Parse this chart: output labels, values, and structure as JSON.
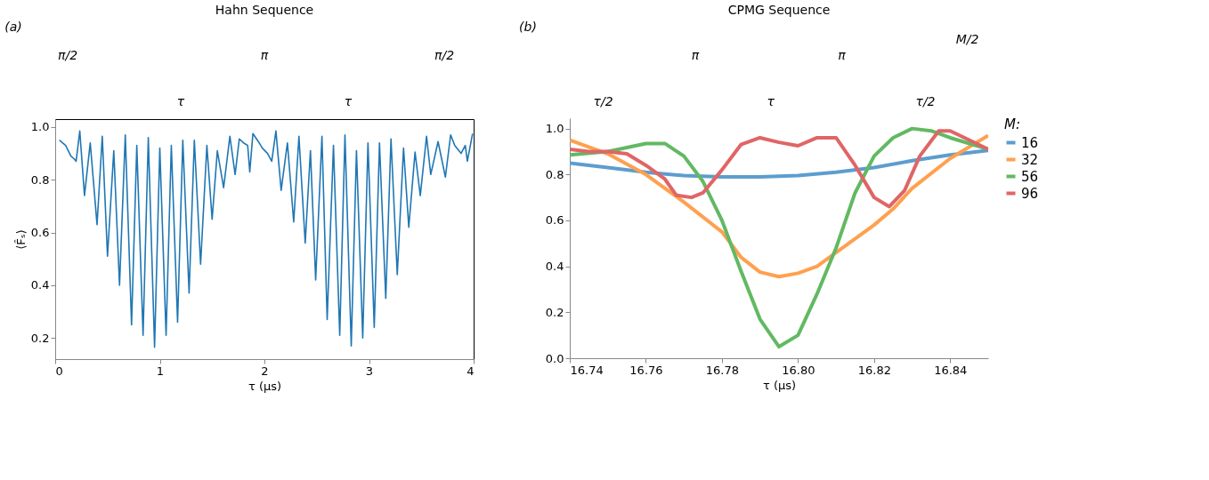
{
  "chart_data": [
    {
      "type": "line",
      "title": "Hahn Sequence",
      "annotations": [
        "(a)",
        "π/2",
        "π",
        "π/2",
        "τ",
        "τ"
      ],
      "xlabel": "τ (μs)",
      "ylabel": "⟨F̂ₛ⟩",
      "xlim": [
        0,
        4
      ],
      "ylim": [
        0.12,
        1.03
      ],
      "xticks": [
        0,
        1,
        2,
        3,
        4
      ],
      "yticks": [
        {
          "value": 0.2,
          "label": "0.2"
        },
        {
          "value": 0.4,
          "label": "0.4"
        },
        {
          "value": 0.6,
          "label": "0.6"
        },
        {
          "value": 0.8,
          "label": "0.8"
        },
        {
          "value": 1.0,
          "label": "1.0"
        }
      ],
      "grid": false,
      "legend": false,
      "line_style": "solid",
      "series": [
        {
          "color": "#1f77b4",
          "x": [
            0.04,
            0.1,
            0.15,
            0.18,
            0.2,
            0.235,
            0.28,
            0.335,
            0.4,
            0.45,
            0.5,
            0.56,
            0.615,
            0.67,
            0.73,
            0.78,
            0.84,
            0.89,
            0.95,
            1.0,
            1.06,
            1.11,
            1.17,
            1.22,
            1.28,
            1.33,
            1.39,
            1.45,
            1.5,
            1.55,
            1.61,
            1.67,
            1.72,
            1.76,
            1.8,
            1.84,
            1.86,
            1.89,
            1.95,
            1.98,
            2.03,
            2.07,
            2.11,
            2.16,
            2.22,
            2.28,
            2.33,
            2.39,
            2.44,
            2.49,
            2.55,
            2.6,
            2.66,
            2.72,
            2.77,
            2.83,
            2.88,
            2.94,
            2.99,
            3.05,
            3.1,
            3.16,
            3.21,
            3.27,
            3.33,
            3.38,
            3.44,
            3.49,
            3.55,
            3.59,
            3.66,
            3.73,
            3.78,
            3.82,
            3.88,
            3.92,
            3.94,
            3.99
          ],
          "values": [
            0.95,
            0.93,
            0.89,
            0.88,
            0.87,
            0.985,
            0.74,
            0.94,
            0.63,
            0.965,
            0.51,
            0.91,
            0.4,
            0.97,
            0.25,
            0.93,
            0.21,
            0.96,
            0.165,
            0.92,
            0.21,
            0.93,
            0.26,
            0.95,
            0.37,
            0.95,
            0.48,
            0.93,
            0.65,
            0.91,
            0.77,
            0.965,
            0.82,
            0.955,
            0.94,
            0.93,
            0.83,
            0.975,
            0.94,
            0.92,
            0.9,
            0.87,
            0.985,
            0.76,
            0.94,
            0.64,
            0.965,
            0.56,
            0.91,
            0.42,
            0.965,
            0.27,
            0.93,
            0.21,
            0.97,
            0.17,
            0.91,
            0.2,
            0.94,
            0.24,
            0.94,
            0.35,
            0.955,
            0.44,
            0.92,
            0.62,
            0.905,
            0.74,
            0.965,
            0.82,
            0.945,
            0.81,
            0.97,
            0.93,
            0.9,
            0.93,
            0.87,
            0.975
          ]
        }
      ]
    },
    {
      "type": "line",
      "title": "CPMG Sequence",
      "annotations": [
        "(b)",
        "π",
        "π",
        "τ/2",
        "τ",
        "τ/2",
        "M/2"
      ],
      "xlabel": "τ (μs)",
      "legend_title": "M:",
      "xlim": [
        16.74,
        16.85
      ],
      "ylim": [
        0,
        1.045
      ],
      "xticks": [
        16.74,
        16.76,
        16.78,
        {
          "value": 16.8,
          "label": "16.80"
        },
        16.82,
        16.84
      ],
      "yticks": [
        {
          "value": 0,
          "label": "0.0"
        },
        {
          "value": 0.2,
          "label": "0.2"
        },
        {
          "value": 0.4,
          "label": "0.4"
        },
        {
          "value": 0.6,
          "label": "0.6"
        },
        {
          "value": 0.8,
          "label": "0.8"
        },
        {
          "value": 1.0,
          "label": "1.0"
        }
      ],
      "grid": false,
      "legend": "right",
      "line_style": "solid",
      "series": [
        {
          "name": "16",
          "color": "#5d9dcf",
          "x": [
            16.74,
            16.75,
            16.76,
            16.77,
            16.78,
            16.79,
            16.8,
            16.81,
            16.82,
            16.83,
            16.84,
            16.85
          ],
          "values": [
            0.85,
            0.83,
            0.81,
            0.795,
            0.79,
            0.79,
            0.795,
            0.81,
            0.83,
            0.86,
            0.885,
            0.905
          ]
        },
        {
          "name": "32",
          "color": "#ffa04f",
          "x": [
            16.74,
            16.75,
            16.76,
            16.77,
            16.78,
            16.785,
            16.79,
            16.795,
            16.8,
            16.805,
            16.81,
            16.82,
            16.825,
            16.83,
            16.84,
            16.85
          ],
          "values": [
            0.95,
            0.89,
            0.8,
            0.68,
            0.55,
            0.44,
            0.375,
            0.355,
            0.37,
            0.4,
            0.46,
            0.58,
            0.65,
            0.74,
            0.87,
            0.97
          ]
        },
        {
          "name": "56",
          "color": "#62b962",
          "x": [
            16.74,
            16.75,
            16.76,
            16.765,
            16.77,
            16.775,
            16.78,
            16.785,
            16.79,
            16.795,
            16.8,
            16.805,
            16.81,
            16.815,
            16.82,
            16.825,
            16.83,
            16.835,
            16.84,
            16.85
          ],
          "values": [
            0.885,
            0.9,
            0.935,
            0.935,
            0.88,
            0.77,
            0.6,
            0.38,
            0.17,
            0.05,
            0.1,
            0.28,
            0.48,
            0.72,
            0.88,
            0.96,
            1.0,
            0.99,
            0.96,
            0.91
          ]
        },
        {
          "name": "96",
          "color": "#e06566",
          "x": [
            16.74,
            16.745,
            16.75,
            16.755,
            16.76,
            16.765,
            16.768,
            16.772,
            16.775,
            16.78,
            16.785,
            16.79,
            16.795,
            16.8,
            16.805,
            16.81,
            16.815,
            16.82,
            16.824,
            16.828,
            16.832,
            16.837,
            16.84,
            16.845,
            16.85
          ],
          "values": [
            0.91,
            0.9,
            0.9,
            0.89,
            0.84,
            0.78,
            0.71,
            0.7,
            0.72,
            0.82,
            0.93,
            0.96,
            0.94,
            0.925,
            0.96,
            0.96,
            0.84,
            0.7,
            0.66,
            0.73,
            0.88,
            0.99,
            0.99,
            0.95,
            0.91
          ]
        }
      ]
    }
  ]
}
